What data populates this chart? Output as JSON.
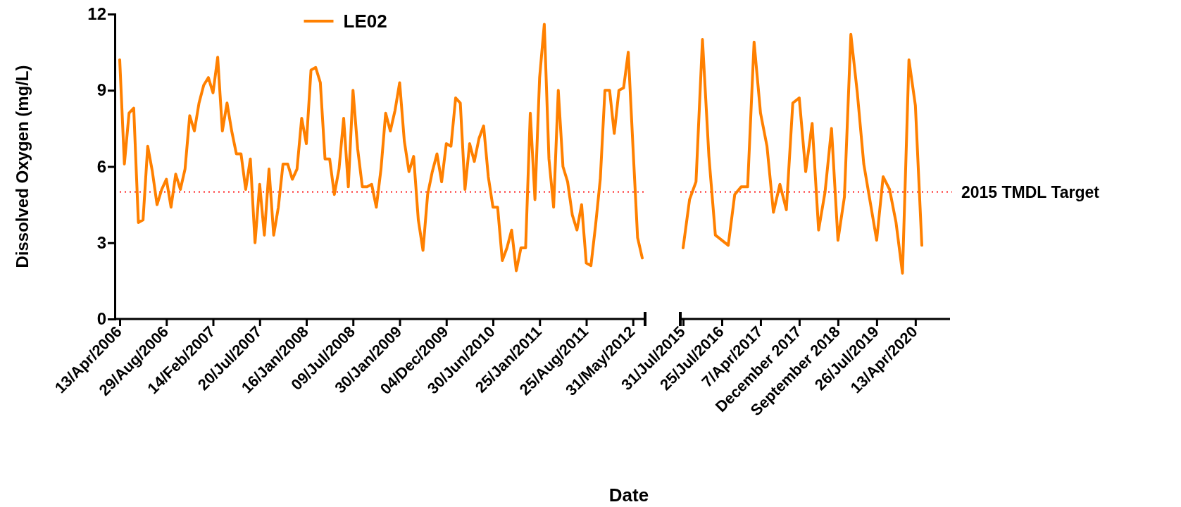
{
  "chart_data": [
    {
      "type": "line",
      "ylabel": "Dissolved Oxygen (mg/L)",
      "xlabel": "Date",
      "legend": "top",
      "ylim": [
        0,
        12
      ],
      "yticks": [
        0,
        3,
        6,
        9,
        12
      ],
      "categories": [
        "13/Apr/2006",
        null,
        null,
        null,
        null,
        null,
        null,
        null,
        null,
        null,
        "29/Aug/2006",
        null,
        null,
        null,
        null,
        null,
        null,
        null,
        null,
        null,
        "14/Feb/2007",
        null,
        null,
        null,
        null,
        null,
        null,
        null,
        null,
        null,
        "20/Jul/2007",
        null,
        null,
        null,
        null,
        null,
        null,
        null,
        null,
        null,
        "16/Jan/2008",
        null,
        null,
        null,
        null,
        null,
        null,
        null,
        null,
        null,
        "09/Jul/2008",
        null,
        null,
        null,
        null,
        null,
        null,
        null,
        null,
        null,
        "30/Jan/2009",
        null,
        null,
        null,
        null,
        null,
        null,
        null,
        null,
        null,
        "04/Dec/2009",
        null,
        null,
        null,
        null,
        null,
        null,
        null,
        null,
        null,
        "30/Jun/2010",
        null,
        null,
        null,
        null,
        null,
        null,
        null,
        null,
        null,
        "25/Jan/2011",
        null,
        null,
        null,
        null,
        null,
        null,
        null,
        null,
        null,
        "25/Aug/2011",
        null,
        null,
        null,
        null,
        null,
        null,
        null,
        null,
        null,
        "31/May/2012",
        null,
        null
      ],
      "series": [
        {
          "name": "LE02",
          "color": "#ff8000",
          "values": [
            10.2,
            6.1,
            8.1,
            8.3,
            3.8,
            3.9,
            6.8,
            5.8,
            4.5,
            5.1,
            5.5,
            4.4,
            5.7,
            5.1,
            5.9,
            8.0,
            7.4,
            8.5,
            9.2,
            9.5,
            8.9,
            10.3,
            7.4,
            8.5,
            7.4,
            6.5,
            6.5,
            5.1,
            6.3,
            3.0,
            5.3,
            3.3,
            5.9,
            3.3,
            4.4,
            6.1,
            6.1,
            5.5,
            5.9,
            7.9,
            6.9,
            9.8,
            9.9,
            9.3,
            6.3,
            6.3,
            4.9,
            5.9,
            7.9,
            5.2,
            9.0,
            6.7,
            5.2,
            5.2,
            5.3,
            4.4,
            5.9,
            8.1,
            7.4,
            8.2,
            9.3,
            7.0,
            5.8,
            6.4,
            3.9,
            2.7,
            4.9,
            5.8,
            6.5,
            5.4,
            6.9,
            6.8,
            8.7,
            8.5,
            5.1,
            6.9,
            6.2,
            7.1,
            7.6,
            5.6,
            4.4,
            4.4,
            2.3,
            2.8,
            3.5,
            1.9,
            2.8,
            2.8,
            8.1,
            4.7,
            9.5,
            11.6,
            6.3,
            4.4,
            9.0,
            6.0,
            5.4,
            4.1,
            3.5,
            4.5,
            2.2,
            2.1,
            3.7,
            5.5,
            9.0,
            9.0,
            7.3,
            9.0,
            9.1,
            10.5,
            6.8,
            3.2,
            2.4
          ]
        }
      ],
      "ref_lines": [
        {
          "axis": "y",
          "value": 5,
          "color": "#ff0000",
          "line_style": "dotted"
        }
      ]
    },
    {
      "type": "line",
      "tick_labels": "x",
      "ylim": [
        0,
        12
      ],
      "categories": [
        "31/Jul/2015",
        null,
        null,
        null,
        null,
        null,
        "25/Jul/2016",
        null,
        null,
        null,
        null,
        null,
        "7/Apr/2017",
        null,
        null,
        null,
        null,
        null,
        "December 2017",
        null,
        null,
        null,
        null,
        null,
        "September 2018",
        null,
        null,
        null,
        null,
        null,
        "26/Jul/2019",
        null,
        null,
        null,
        null,
        null,
        "13/Apr/2020",
        null
      ],
      "series": [
        {
          "color": "#ff8000",
          "values": [
            2.8,
            4.7,
            5.4,
            11.0,
            6.4,
            3.3,
            3.1,
            2.9,
            4.9,
            5.2,
            5.2,
            10.9,
            8.1,
            6.8,
            4.2,
            5.3,
            4.3,
            8.5,
            8.7,
            5.8,
            7.7,
            3.5,
            5.0,
            7.5,
            3.1,
            4.8,
            11.2,
            8.9,
            6.1,
            4.6,
            3.1,
            5.6,
            5.1,
            3.8,
            1.8,
            10.2,
            8.4,
            2.9
          ]
        }
      ],
      "ref_lines": [
        {
          "axis": "y",
          "value": 5,
          "label": "2015 TMDL Target",
          "color": "#ff0000",
          "line_style": "dotted"
        }
      ]
    }
  ]
}
